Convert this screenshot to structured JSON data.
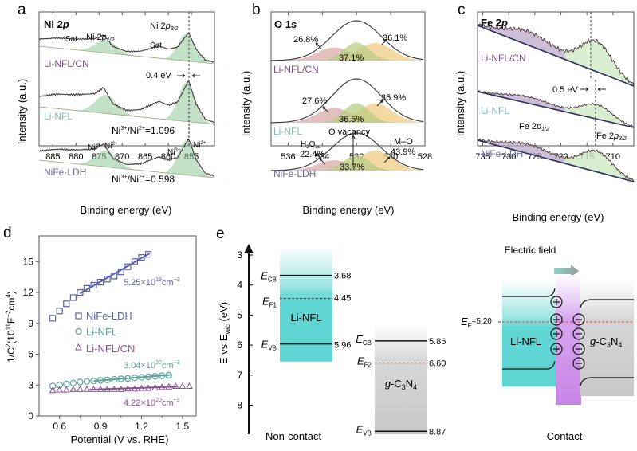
{
  "chart_data": [
    {
      "panel": "a",
      "type": "line",
      "title": "Ni 2p",
      "xlabel": "Binding energy (eV)",
      "ylabel": "Intensity (a.u.)",
      "xlim": [
        888,
        850
      ],
      "xticks": [
        885,
        880,
        875,
        870,
        865,
        860,
        855
      ],
      "series": [
        {
          "name": "Li-NFL/CN",
          "color": "#7b4f86"
        },
        {
          "name": "Li-NFL",
          "color": "#7fb9b2"
        },
        {
          "name": "NiFe-LDH",
          "color": "#6b6f99"
        }
      ],
      "peaks": {
        "x": [
          888,
          884,
          880,
          876,
          874,
          872,
          869,
          866,
          862,
          860,
          858,
          856,
          855.6,
          854,
          852,
          850
        ],
        "profile": [
          0.25,
          0.35,
          0.38,
          0.45,
          0.62,
          0.25,
          0.12,
          0.18,
          0.42,
          0.35,
          0.45,
          0.9,
          1.0,
          0.45,
          0.1,
          0.05
        ]
      },
      "annotations": [
        {
          "text": "Sat.",
          "x": 880,
          "panel_row": 0
        },
        {
          "text": "Ni 2p1/2",
          "x": 873,
          "panel_row": 0
        },
        {
          "text": "Sat.",
          "x": 861,
          "panel_row": 0
        },
        {
          "text": "Ni 2p3/2",
          "x": 858,
          "panel_row": 0
        },
        {
          "text": "0.4 eV",
          "x": 857,
          "panel_row": 1
        },
        {
          "text": "Ni3+/Ni2+=1.096",
          "x": 862,
          "panel_row": 1
        },
        {
          "text": "Ni3+",
          "x": 875,
          "panel_row": 2
        },
        {
          "text": "Ni2+",
          "x": 872,
          "panel_row": 2
        },
        {
          "text": "Ni3+",
          "x": 857,
          "panel_row": 2
        },
        {
          "text": "Ni2+",
          "x": 854,
          "panel_row": 2
        },
        {
          "text": "Ni3+/Ni2+=0.598",
          "x": 862,
          "panel_row": 2
        }
      ],
      "dashed_line_x": 855.6
    },
    {
      "panel": "b",
      "type": "area",
      "title": "O 1s",
      "xlabel": "Binding energy (eV)",
      "ylabel": "Intensity (a.u.)",
      "xlim": [
        537,
        528
      ],
      "xticks": [
        536,
        534,
        532,
        530,
        528
      ],
      "series": [
        {
          "name": "Li-NFL/CN",
          "color": "#7b4f86",
          "components": {
            "H2O_ad": 26.8,
            "O_vacancy": 37.1,
            "M-O": 36.1
          }
        },
        {
          "name": "Li-NFL",
          "color": "#7fb9b2",
          "components": {
            "H2O_ad": 27.6,
            "O_vacancy": 36.5,
            "M-O": 35.9
          }
        },
        {
          "name": "NiFe-LDH",
          "color": "#6b6f99",
          "components": {
            "H2O_ad": 22.4,
            "O_vacancy": 33.7,
            "M-O": 43.9
          }
        }
      ],
      "component_colors": {
        "H2O_ad": "#d9aaa8",
        "O_vacancy": "#b9cc84",
        "M-O": "#f0cc84"
      },
      "annotations": [
        "26.8%",
        "37.1%",
        "36.1%",
        "27.6%",
        "36.5%",
        "35.9%",
        "H2Oad",
        "22.4%",
        "O vacancy",
        "33.7%",
        "M–O",
        "43.9%"
      ]
    },
    {
      "panel": "c",
      "type": "line",
      "title": "Fe 2p",
      "xlabel": "Binding energy (eV)",
      "ylabel": "Intensity (a.u.)",
      "xlim": [
        736,
        706
      ],
      "xticks": [
        735,
        730,
        725,
        720,
        715,
        710
      ],
      "series": [
        {
          "name": "Li-NFL/CN",
          "color": "#7b4f86"
        },
        {
          "name": "Li-NFL",
          "color": "#7fb9b2"
        },
        {
          "name": "NiFe-LDH",
          "color": "#6b6f99"
        }
      ],
      "annotations": [
        {
          "text": "0.5 eV"
        },
        {
          "text": "Fe 2p1/2"
        },
        {
          "text": "Fe 2p3/2"
        }
      ],
      "dashed_lines_x": [
        713.5,
        712.9
      ]
    },
    {
      "panel": "d",
      "type": "scatter",
      "xlabel": "Potential (V vs. RHE)",
      "ylabel": "1/C2(1011F-2cm4)",
      "xlim": [
        0.45,
        1.6
      ],
      "ylim": [
        0,
        17.5
      ],
      "xticks": [
        0.6,
        0.9,
        1.2,
        1.5
      ],
      "yticks": [
        0,
        3,
        6,
        9,
        12,
        15
      ],
      "series": [
        {
          "name": "NiFe-LDH",
          "marker": "square",
          "color": "#5b5fa8",
          "x": [
            0.55,
            0.6,
            0.65,
            0.7,
            0.75,
            0.8,
            0.85,
            0.9,
            0.95,
            1.0,
            1.05,
            1.1,
            1.15,
            1.2,
            1.25
          ],
          "y": [
            9.5,
            10.2,
            10.9,
            11.5,
            12.0,
            12.4,
            12.7,
            13.0,
            13.3,
            13.6,
            14.0,
            14.5,
            15.0,
            15.4,
            15.7
          ],
          "fit": {
            "x": [
              0.75,
              1.26
            ],
            "y": [
              11.9,
              15.8
            ]
          },
          "label": "5.25×10^19cm^-3"
        },
        {
          "name": "Li-NFL",
          "marker": "circle",
          "color": "#5aa39b",
          "x": [
            0.55,
            0.6,
            0.65,
            0.7,
            0.75,
            0.8,
            0.85,
            0.9,
            0.95,
            1.0,
            1.05,
            1.1,
            1.15,
            1.2,
            1.25,
            1.3,
            1.35,
            1.4
          ],
          "y": [
            2.9,
            3.0,
            3.1,
            3.2,
            3.3,
            3.35,
            3.4,
            3.45,
            3.5,
            3.55,
            3.6,
            3.65,
            3.7,
            3.75,
            3.8,
            3.85,
            3.9,
            3.95
          ],
          "fit": {
            "x": [
              0.85,
              1.42
            ],
            "y": [
              3.4,
              4.0
            ]
          },
          "label": "3.04×10^20cm^-3"
        },
        {
          "name": "Li-NFL/CN",
          "marker": "triangle",
          "color": "#8a4f96",
          "x": [
            0.55,
            0.6,
            0.65,
            0.7,
            0.75,
            0.8,
            0.85,
            0.9,
            0.95,
            1.0,
            1.05,
            1.1,
            1.15,
            1.2,
            1.25,
            1.3,
            1.35,
            1.4,
            1.45,
            1.5,
            1.55
          ],
          "y": [
            2.5,
            2.55,
            2.55,
            2.6,
            2.6,
            2.6,
            2.6,
            2.6,
            2.6,
            2.6,
            2.6,
            2.65,
            2.65,
            2.7,
            2.7,
            2.75,
            2.8,
            2.85,
            2.9,
            2.9,
            2.9
          ],
          "fit": {
            "x": [
              0.82,
              1.46
            ],
            "y": [
              2.55,
              2.85
            ]
          },
          "label": "4.22×10^20cm^-3"
        }
      ],
      "legend": "center-left"
    },
    {
      "panel": "e",
      "type": "diagram",
      "ylabel": "E vs Evac (eV)",
      "ylim": [
        2.5,
        9.2
      ],
      "yticks": [
        3,
        4,
        5,
        6,
        7,
        8
      ],
      "non_contact": {
        "label": "Non-contact",
        "li_nfl": {
          "name": "Li-NFL",
          "ECB": 3.68,
          "EF1": 4.45,
          "EVB": 5.96,
          "top": 2.7,
          "bottom": 6.55,
          "color": "#5fd6d3"
        },
        "gc3n4": {
          "name": "g-C3N4",
          "ECB": 5.86,
          "EF2": 6.6,
          "EVB": 8.87,
          "top": 5.3,
          "bottom": 9.2,
          "color": "#cfcfcf"
        }
      },
      "contact": {
        "label": "Contact",
        "EF": 5.2,
        "EF_label": "EF=5.20",
        "field_label": "Electric field",
        "left_name": "Li-NFL",
        "right_name": "g-C3N4",
        "plus_count": 4,
        "minus_count": 4
      }
    }
  ],
  "labels": {
    "panel_a": "a",
    "panel_b": "b",
    "panel_c": "c",
    "panel_d": "d",
    "panel_e": "e",
    "a_title": "Ni 2",
    "a_title_p": "p",
    "b_title": "O 1",
    "b_title_s": "s",
    "c_title": "Fe 2",
    "c_title_p": "p",
    "intensity": "Intensity (a.u.)",
    "binding": "Binding energy (eV)",
    "sample_cn": "Li-NFL/CN",
    "sample_nfl": "Li-NFL",
    "sample_ldh": "NiFe-LDH",
    "sat": "Sat.",
    "ni2p": "Ni 2",
    "ni_p": "p",
    "sub12": "1/2",
    "sub32": "3/2",
    "shift_a": "0.4 eV",
    "shift_c": "0.5 eV",
    "ratio_nfl_pre": "Ni",
    "ratio_nfl_val": "=1.096",
    "ratio_ldh_val": "=0.598",
    "sup3": "3+",
    "sup2": "2+",
    "ni": "Ni",
    "pct_cn": [
      "26.8%",
      "37.1%",
      "36.1%"
    ],
    "pct_nfl": [
      "27.6%",
      "36.5%",
      "35.9%"
    ],
    "pct_ldh": [
      "22.4%",
      "33.7%",
      "43.9%"
    ],
    "h2o": "H",
    "h2o_2": "2",
    "h2o_o": "O",
    "h2o_ad": "ad",
    "ovac": "O vacancy",
    "mo": "M–O",
    "fe": "Fe 2",
    "fe_p": "p",
    "d_ylabel_1": "1/C",
    "d_ylabel_2": "2",
    "d_ylabel_3": "(10",
    "d_ylabel_4": "11",
    "d_ylabel_5": "F",
    "d_ylabel_6": "−2",
    "d_ylabel_7": "cm",
    "d_ylabel_8": "4",
    "d_ylabel_9": ")",
    "d_xlabel": "Potential (V vs. RHE)",
    "d_cc1_a": "5.25×10",
    "d_cc1_b": "19",
    "d_cc1_c": "cm",
    "d_cc1_d": "−3",
    "d_cc2_a": "3.04×10",
    "d_cc2_b": "20",
    "d_cc2_c": "cm",
    "d_cc2_d": "−3",
    "d_cc3_a": "4.22×10",
    "d_cc3_b": "20",
    "d_cc3_c": "cm",
    "d_cc3_d": "−3",
    "e_ylabel_a": "E vs E",
    "e_ylabel_b": "vac",
    "e_ylabel_c": " (eV)",
    "E": "E",
    "CB": "CB",
    "VB": "VB",
    "F1": "F1",
    "F2": "F2",
    "F": "F",
    "v368": "3.68",
    "v445": "4.45",
    "v596": "5.96",
    "v586": "5.86",
    "v660": "6.60",
    "v887": "8.87",
    "ef520": "=5.20",
    "li_nfl": "Li-NFL",
    "g": "g",
    "c3n4_a": "-C",
    "c3n4_3": "3",
    "c3n4_n": "N",
    "c3n4_4": "4",
    "noncontact": "Non-contact",
    "contact": "Contact",
    "efield": "Electric field"
  }
}
